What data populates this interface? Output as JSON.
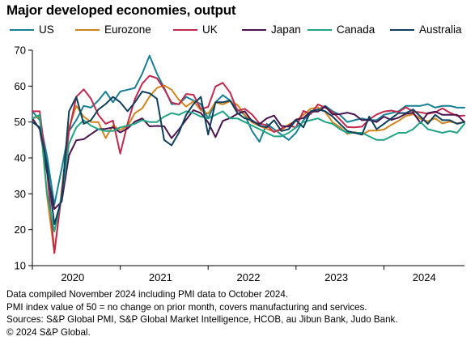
{
  "chart_data": {
    "type": "line",
    "title": "Major developed economies, output",
    "xlabel": "",
    "ylabel": "",
    "x_start": "2020-01",
    "x_end": "2024-10",
    "xlim": [
      "2020-01",
      "2024-12"
    ],
    "ylim": [
      10,
      70
    ],
    "yticks": [
      10,
      20,
      30,
      40,
      50,
      60,
      70
    ],
    "xticks": [
      "2020",
      "2021",
      "2022",
      "2023",
      "2024"
    ],
    "grid": false,
    "legend_position": "top",
    "series": [
      {
        "name": "US",
        "color": "#177f96",
        "values": [
          53,
          50.5,
          40.5,
          27,
          37,
          47.5,
          50.5,
          54.5,
          54,
          56,
          58.5,
          55.5,
          58.5,
          59,
          59.5,
          63.5,
          68.5,
          63.5,
          59.5,
          55,
          55,
          57,
          56,
          55,
          51,
          55.5,
          57.5,
          56,
          53.5,
          52,
          47.5,
          44.5,
          49.5,
          48,
          46.5,
          45,
          47,
          50.5,
          52.5,
          53.5,
          54.5,
          53,
          52,
          50,
          50.5,
          51,
          50.5,
          50.5,
          52,
          52.5,
          53,
          54.5,
          54.5,
          54.5,
          55,
          54,
          54.5,
          54.5,
          54,
          54
        ]
      },
      {
        "name": "Eurozone",
        "color": "#d1841d",
        "values": [
          51,
          51.5,
          29.5,
          13.5,
          31,
          48.5,
          54.5,
          51.5,
          50,
          50,
          45.5,
          49,
          47.8,
          48.8,
          52.5,
          53.8,
          57.1,
          59.5,
          60.2,
          59,
          56.2,
          54.3,
          55.8,
          53.3,
          52.3,
          55.5,
          54.9,
          55.8,
          54.8,
          52,
          49.9,
          48.9,
          48.1,
          47.3,
          47.8,
          49.3,
          50.3,
          52,
          53.7,
          54.1,
          52.8,
          49.9,
          48.6,
          46.7,
          47.2,
          46.5,
          47.6,
          47.6,
          47.9,
          49.2,
          50.3,
          51.7,
          52.2,
          50.9,
          50.2,
          51,
          49.6,
          50.1,
          49.6,
          50
        ]
      },
      {
        "name": "UK",
        "color": "#c1294e",
        "values": [
          53,
          53,
          36.5,
          13.5,
          30,
          47.5,
          57,
          59.1,
          56.5,
          52,
          49.5,
          50.4,
          41.2,
          49.6,
          56.4,
          60.7,
          62.9,
          62.2,
          59.2,
          55.4,
          54.9,
          57.8,
          57.6,
          53.6,
          54.2,
          59.9,
          60.9,
          58.2,
          53.1,
          53.7,
          52.1,
          49.6,
          49.1,
          47.2,
          48.2,
          49,
          48.5,
          53.1,
          52.2,
          54.9,
          54,
          52.8,
          50.7,
          48.6,
          48.5,
          48.7,
          50.7,
          52.1,
          52.9,
          53.2,
          52.8,
          54.1,
          52.9,
          52.7,
          52.3,
          52.7,
          53.8,
          52.6,
          51.7,
          51.8
        ]
      },
      {
        "name": "Japan",
        "color": "#4a154f",
        "values": [
          51,
          48,
          36,
          25.8,
          27.8,
          40.8,
          44.9,
          45.2,
          46.6,
          48,
          48.1,
          48.5,
          47.1,
          48.2,
          50.1,
          51,
          48.8,
          48.9,
          48.8,
          45.5,
          47.9,
          50.7,
          53.3,
          52.5,
          49.9,
          45.8,
          50.3,
          51.1,
          52.3,
          53,
          50.2,
          49.4,
          51,
          51.8,
          48.9,
          48.7,
          50.7,
          51.1,
          52.9,
          52.9,
          54.3,
          52.1,
          52.2,
          52.6,
          52.1,
          50.5,
          50.6,
          50,
          51.5,
          50.6,
          51.2,
          52.3,
          52.6,
          49.7,
          52.5,
          52.9,
          52,
          52,
          52,
          50
        ]
      },
      {
        "name": "Canada",
        "color": "#1fa585",
        "values": [
          51,
          52,
          30,
          19.5,
          29.5,
          44,
          48.5,
          50.5,
          49,
          48,
          47.5,
          47.5,
          48.5,
          49,
          49.5,
          50.5,
          50,
          50,
          51.5,
          52.5,
          52,
          53,
          52.5,
          51.5,
          51,
          52,
          53,
          51,
          51,
          50,
          49,
          48,
          47,
          46,
          46,
          47,
          48.5,
          50,
          50.5,
          51,
          50,
          49.5,
          48,
          47,
          47,
          47,
          46,
          45,
          45,
          46,
          47,
          47,
          48,
          50,
          48,
          47.5,
          47,
          47.5,
          47,
          49.5
        ]
      },
      {
        "name": "Australia",
        "color": "#0e3f5c",
        "values": [
          50,
          48.5,
          38,
          21.5,
          28.5,
          53,
          57,
          49.5,
          50.5,
          53.5,
          55,
          57,
          55.5,
          53,
          55.5,
          58.5,
          58,
          56.5,
          45,
          43.5,
          47,
          52,
          55,
          57,
          46.5,
          55.5,
          55.5,
          56,
          52.5,
          51,
          50.5,
          49,
          48.5,
          50.5,
          47.5,
          48,
          50.5,
          48.5,
          53,
          53.5,
          53,
          51.5,
          49.5,
          47.5,
          47,
          46.5,
          51.5,
          48,
          49.5,
          51,
          52.5,
          52.5,
          53.5,
          51.5,
          49.5,
          52,
          50.5,
          50.5,
          49.5,
          50
        ]
      }
    ]
  },
  "notes": [
    "Data compiled November 2024 including PMI data to October 2024.",
    "PMI index value of 50 = no change on prior month, covers manufacturing and services.",
    "Sources: S&P Global PMI, S&P Global Market Intelligence, HCOB, au Jibun Bank, Judo Bank.",
    "© 2024 S&P Global."
  ]
}
